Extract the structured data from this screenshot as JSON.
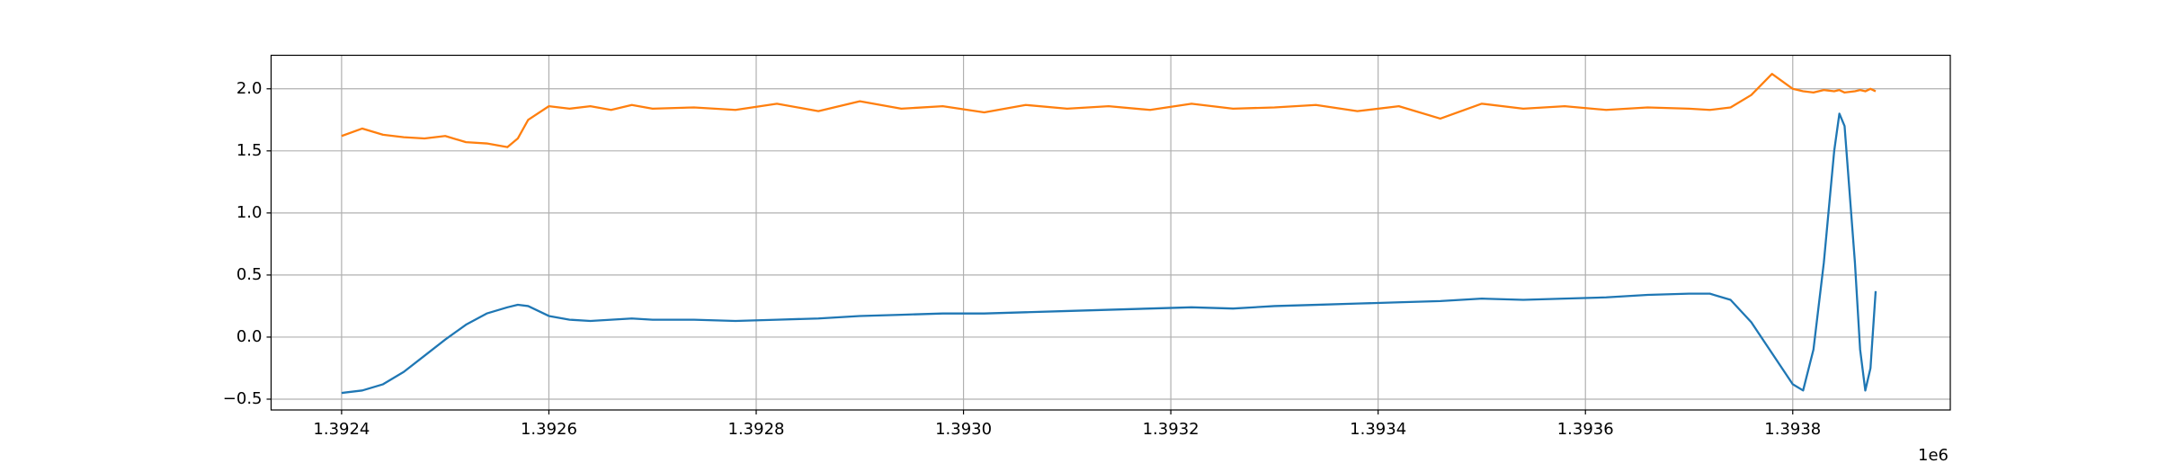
{
  "chart_data": {
    "type": "line",
    "x": [
      1.3924,
      1.39242,
      1.39244,
      1.39246,
      1.39248,
      1.3925,
      1.39252,
      1.39254,
      1.39256,
      1.39257,
      1.39258,
      1.3926,
      1.39262,
      1.39264,
      1.39266,
      1.39268,
      1.3927,
      1.39274,
      1.39278,
      1.39282,
      1.39286,
      1.3929,
      1.39294,
      1.39298,
      1.39302,
      1.39306,
      1.3931,
      1.39314,
      1.39318,
      1.39322,
      1.39326,
      1.3933,
      1.39334,
      1.39338,
      1.39342,
      1.39346,
      1.3935,
      1.39354,
      1.39358,
      1.39362,
      1.39366,
      1.3937,
      1.39372,
      1.39374,
      1.39376,
      1.39378,
      1.3938,
      1.39381,
      1.39382,
      1.39383,
      1.39384,
      1.393845,
      1.39385,
      1.39386,
      1.393865,
      1.39387,
      1.393875,
      1.39388
    ],
    "series": [
      {
        "color": "#1f77b4",
        "values": [
          -0.45,
          -0.43,
          -0.38,
          -0.28,
          -0.15,
          -0.02,
          0.1,
          0.19,
          0.24,
          0.26,
          0.25,
          0.17,
          0.14,
          0.13,
          0.14,
          0.15,
          0.14,
          0.14,
          0.13,
          0.14,
          0.15,
          0.17,
          0.18,
          0.19,
          0.19,
          0.2,
          0.21,
          0.22,
          0.23,
          0.24,
          0.23,
          0.25,
          0.26,
          0.27,
          0.28,
          0.29,
          0.31,
          0.3,
          0.31,
          0.32,
          0.34,
          0.35,
          0.35,
          0.3,
          0.12,
          -0.13,
          -0.38,
          -0.43,
          -0.1,
          0.6,
          1.5,
          1.8,
          1.7,
          0.6,
          -0.1,
          -0.43,
          -0.25,
          0.37
        ]
      },
      {
        "color": "#ff7f0e",
        "values": [
          1.62,
          1.68,
          1.63,
          1.61,
          1.6,
          1.62,
          1.57,
          1.56,
          1.53,
          1.6,
          1.75,
          1.86,
          1.84,
          1.86,
          1.83,
          1.87,
          1.84,
          1.85,
          1.83,
          1.88,
          1.82,
          1.9,
          1.84,
          1.86,
          1.81,
          1.87,
          1.84,
          1.86,
          1.83,
          1.88,
          1.84,
          1.85,
          1.87,
          1.82,
          1.86,
          1.76,
          1.88,
          1.84,
          1.86,
          1.83,
          1.85,
          1.84,
          1.83,
          1.85,
          1.95,
          2.12,
          2.0,
          1.98,
          1.97,
          1.99,
          1.98,
          1.99,
          1.97,
          1.98,
          1.99,
          1.98,
          2.0,
          1.98
        ]
      }
    ],
    "xlim": [
      1.392332,
      1.393952
    ],
    "xticks": [
      1.3924,
      1.3926,
      1.3928,
      {
        "value": 1.393,
        "label": "1.3930"
      },
      1.3932,
      1.3934,
      1.3936,
      1.3938
    ],
    "x_offset_label": "1e6",
    "ylim": [
      -0.587,
      2.27
    ],
    "yticks": [
      {
        "value": -0.5,
        "label": "−0.5"
      },
      {
        "value": 0,
        "label": "0.0"
      },
      0.5,
      {
        "value": 1,
        "label": "1.0"
      },
      1.5,
      {
        "value": 2,
        "label": "2.0"
      }
    ],
    "grid": true
  }
}
